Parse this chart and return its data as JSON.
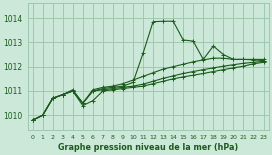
{
  "title": "Graphe pression niveau de la mer (hPa)",
  "bg_color": "#cce8d8",
  "grid_color": "#99c4aa",
  "line_color": "#1a5c1a",
  "xlim": [
    -0.5,
    23.5
  ],
  "ylim": [
    1009.4,
    1014.6
  ],
  "yticks": [
    1010,
    1011,
    1012,
    1013,
    1014
  ],
  "xticks": [
    0,
    1,
    2,
    3,
    4,
    5,
    6,
    7,
    8,
    9,
    10,
    11,
    12,
    13,
    14,
    15,
    16,
    17,
    18,
    19,
    20,
    21,
    22,
    23
  ],
  "xa": [
    0,
    1,
    2,
    3,
    4,
    5,
    6,
    7,
    8,
    9,
    10,
    11,
    12,
    13,
    14,
    15,
    16,
    17,
    18,
    19,
    20,
    21,
    22,
    23
  ],
  "ya": [
    1009.8,
    1010.0,
    1010.7,
    1010.85,
    1011.0,
    1010.5,
    1011.0,
    1011.1,
    1011.15,
    1011.2,
    1011.35,
    1012.55,
    1013.85,
    1013.87,
    1013.87,
    1013.1,
    1013.05,
    1012.3,
    1012.85,
    1012.5,
    1012.3,
    1012.3,
    1012.3,
    1012.3
  ],
  "xb": [
    0,
    1,
    2,
    3,
    4,
    5,
    6,
    7,
    8,
    9,
    10,
    11,
    12,
    13,
    14,
    15,
    16,
    17,
    18,
    19,
    20,
    21,
    22,
    23
  ],
  "yb": [
    1009.8,
    1010.0,
    1010.7,
    1010.85,
    1011.05,
    1010.5,
    1011.05,
    1011.15,
    1011.2,
    1011.3,
    1011.45,
    1011.6,
    1011.75,
    1011.9,
    1012.0,
    1012.1,
    1012.2,
    1012.28,
    1012.35,
    1012.35,
    1012.3,
    1012.3,
    1012.28,
    1012.25
  ],
  "xc": [
    0,
    1,
    2,
    3,
    4,
    5,
    6,
    7,
    8,
    9,
    10,
    11,
    12,
    13,
    14,
    15,
    16,
    17,
    18,
    19,
    20,
    21,
    22,
    23
  ],
  "yc": [
    1009.8,
    1010.0,
    1010.7,
    1010.85,
    1011.0,
    1010.5,
    1011.0,
    1011.05,
    1011.1,
    1011.15,
    1011.2,
    1011.28,
    1011.4,
    1011.52,
    1011.62,
    1011.72,
    1011.8,
    1011.88,
    1011.95,
    1012.02,
    1012.08,
    1012.14,
    1012.18,
    1012.22
  ],
  "xd": [
    0,
    1,
    2,
    3,
    4,
    5,
    6,
    7,
    8,
    9,
    10,
    11,
    12,
    13,
    14,
    15,
    16,
    17,
    18,
    19,
    20,
    21,
    22,
    23
  ],
  "yd": [
    1009.8,
    1010.0,
    1010.7,
    1010.85,
    1011.0,
    1010.4,
    1010.6,
    1011.0,
    1011.05,
    1011.1,
    1011.15,
    1011.2,
    1011.3,
    1011.4,
    1011.5,
    1011.58,
    1011.65,
    1011.72,
    1011.8,
    1011.88,
    1011.95,
    1012.02,
    1012.12,
    1012.18
  ]
}
